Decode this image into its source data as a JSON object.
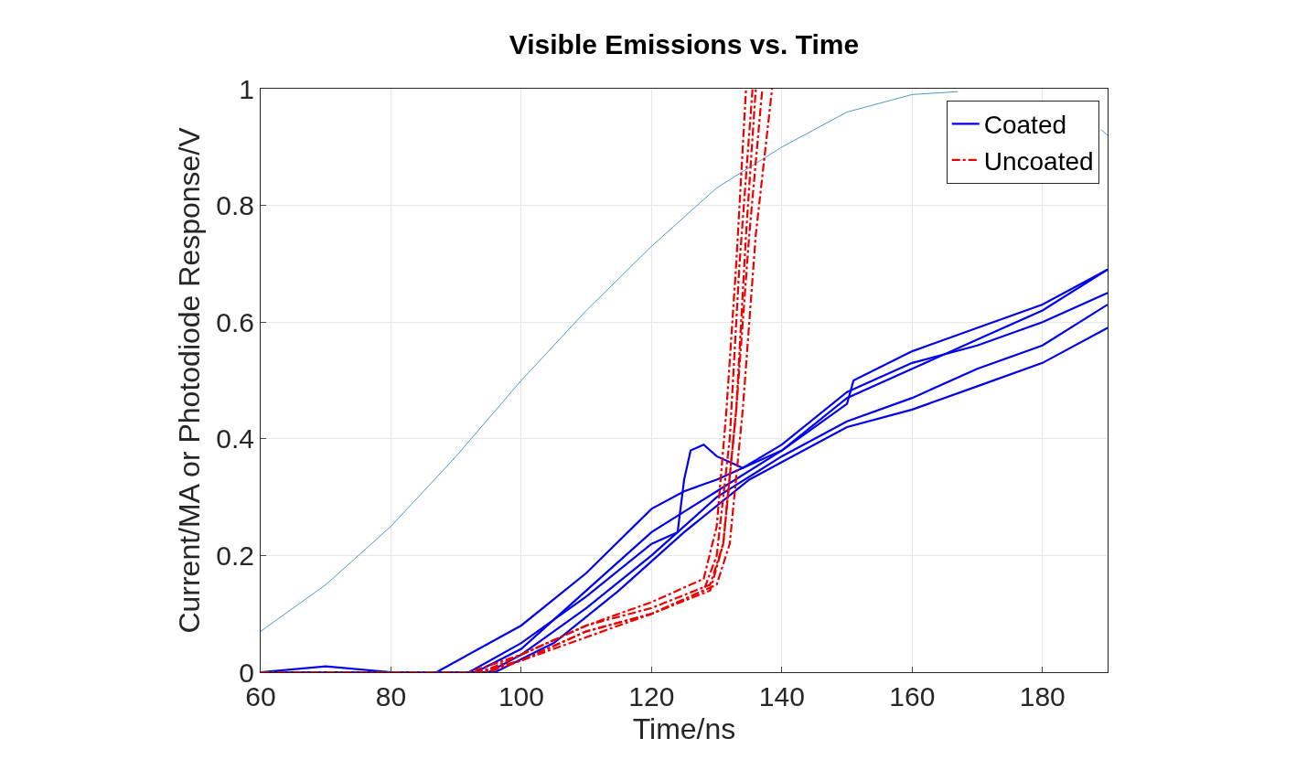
{
  "chart_data": {
    "type": "line",
    "title": "Visible Emissions vs. Time",
    "xlabel": "Time/ns",
    "ylabel": "Current/MA or Photodiode Response/V",
    "xlim": [
      60,
      190
    ],
    "ylim": [
      0,
      1
    ],
    "xticks": [
      60,
      80,
      100,
      120,
      140,
      160,
      180
    ],
    "yticks": [
      0,
      0.2,
      0.4,
      0.6,
      0.8,
      1
    ],
    "grid": true,
    "legend": "top right",
    "marker": "none",
    "series": [
      {
        "color": "#4a9cc0",
        "line_style": "solid",
        "x": [
          60,
          70,
          80,
          90,
          100,
          110,
          120,
          130,
          140,
          150,
          160,
          167,
          175,
          180,
          189,
          190
        ],
        "values": [
          0.07,
          0.15,
          0.25,
          0.37,
          0.5,
          0.62,
          0.73,
          0.83,
          0.9,
          0.96,
          0.99,
          0.995,
          null,
          null,
          0.93,
          0.92
        ]
      },
      {
        "name": "Coated",
        "color": "#0000ee",
        "line_style": "solid",
        "x": [
          60,
          70,
          80,
          87,
          100,
          110,
          120,
          125,
          130,
          140,
          150,
          160,
          170,
          180,
          190
        ],
        "values": [
          0,
          0.01,
          0,
          0,
          0.08,
          0.17,
          0.28,
          0.31,
          0.33,
          0.38,
          0.47,
          0.52,
          0.57,
          0.62,
          0.69
        ]
      },
      {
        "color": "#0000ee",
        "line_style": "solid",
        "x": [
          60,
          70,
          80,
          92,
          100,
          110,
          120,
          124,
          125,
          126,
          128,
          130,
          134,
          140,
          150,
          160,
          170,
          180,
          190
        ],
        "values": [
          0,
          0,
          0,
          0,
          0.05,
          0.13,
          0.22,
          0.24,
          0.33,
          0.38,
          0.39,
          0.37,
          0.35,
          0.39,
          0.48,
          0.53,
          0.56,
          0.6,
          0.65
        ]
      },
      {
        "color": "#0000ee",
        "line_style": "solid",
        "x": [
          60,
          70,
          80,
          93,
          100,
          110,
          120,
          130,
          140,
          150,
          151,
          160,
          170,
          180,
          190
        ],
        "values": [
          0,
          0,
          0,
          0,
          0.04,
          0.14,
          0.24,
          0.31,
          0.38,
          0.46,
          0.5,
          0.55,
          0.59,
          0.63,
          0.69
        ]
      },
      {
        "color": "#0000ee",
        "line_style": "solid",
        "x": [
          60,
          70,
          80,
          95,
          100,
          110,
          120,
          130,
          140,
          150,
          160,
          170,
          180,
          190
        ],
        "values": [
          0,
          0,
          0,
          0,
          0.03,
          0.11,
          0.2,
          0.3,
          0.37,
          0.43,
          0.47,
          0.52,
          0.56,
          0.63
        ]
      },
      {
        "color": "#0000ee",
        "line_style": "solid",
        "x": [
          60,
          70,
          80,
          96,
          105,
          115,
          125,
          135,
          140,
          150,
          160,
          170,
          180,
          190
        ],
        "values": [
          0,
          0,
          0,
          0,
          0.05,
          0.14,
          0.24,
          0.33,
          0.36,
          0.42,
          0.45,
          0.49,
          0.53,
          0.59
        ]
      },
      {
        "name": "Uncoated",
        "color": "#ee0000",
        "line_style": "dashdot",
        "x": [
          60,
          70,
          80,
          93,
          100,
          110,
          120,
          128,
          130,
          132,
          133.5,
          135.5
        ],
        "values": [
          0,
          0,
          0,
          0,
          0.02,
          0.07,
          0.1,
          0.14,
          0.2,
          0.4,
          0.7,
          1
        ]
      },
      {
        "color": "#ee0000",
        "line_style": "dashdot",
        "x": [
          60,
          70,
          80,
          94,
          100,
          110,
          120,
          129,
          131,
          133,
          135,
          137
        ],
        "values": [
          0,
          0,
          0,
          0,
          0.03,
          0.08,
          0.11,
          0.15,
          0.22,
          0.45,
          0.75,
          1
        ]
      },
      {
        "color": "#ee0000",
        "line_style": "dashdot",
        "x": [
          60,
          70,
          80,
          95,
          100,
          110,
          120,
          130,
          132,
          134,
          136,
          138.5
        ],
        "values": [
          0,
          0,
          0,
          0,
          0.02,
          0.06,
          0.1,
          0.15,
          0.22,
          0.45,
          0.75,
          1
        ]
      },
      {
        "color": "#ee0000",
        "line_style": "dashdot",
        "x": [
          60,
          70,
          80,
          92,
          100,
          110,
          120,
          128,
          130,
          131.5,
          133,
          134.5
        ],
        "values": [
          0,
          0,
          0,
          0,
          0.03,
          0.08,
          0.12,
          0.16,
          0.25,
          0.45,
          0.7,
          1
        ]
      },
      {
        "color": "#ee0000",
        "line_style": "dashdot",
        "x": [
          60,
          70,
          80,
          94,
          100,
          110,
          120,
          129,
          131,
          133,
          134.5,
          136
        ],
        "values": [
          0,
          0,
          0,
          0,
          0.02,
          0.07,
          0.1,
          0.14,
          0.22,
          0.45,
          0.75,
          1
        ]
      }
    ]
  }
}
